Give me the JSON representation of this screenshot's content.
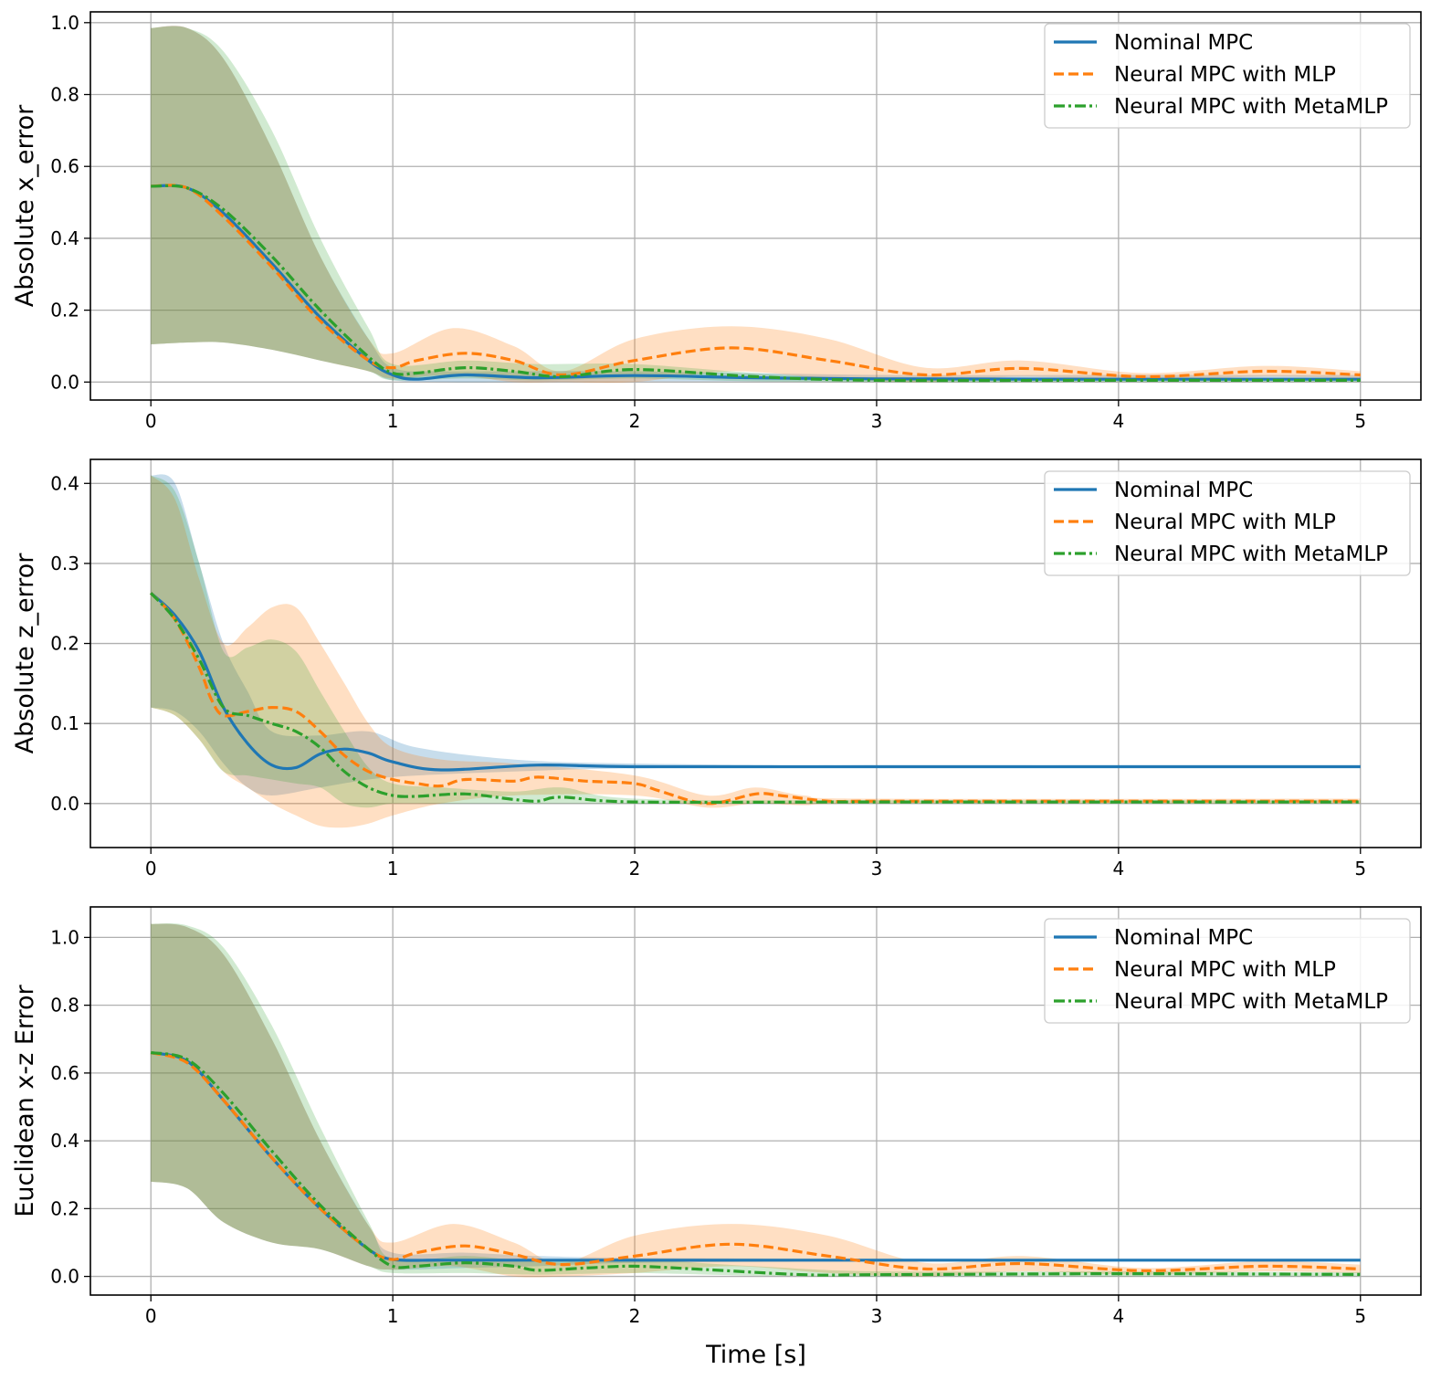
{
  "figure": {
    "xlabel": "Time [s]"
  },
  "colors": {
    "nominal": "#1f77b4",
    "mlp": "#ff7f0e",
    "metamlp": "#2ca02c",
    "grid": "#b0b0b0"
  },
  "legend": [
    "Nominal MPC",
    "Neural MPC with MLP",
    "Neural MPC with MetaMLP"
  ],
  "chart_data": [
    {
      "type": "line",
      "ylabel": "Absolute x_error",
      "xlim": [
        -0.25,
        5.25
      ],
      "ylim": [
        -0.05,
        1.03
      ],
      "xticks": [
        0,
        1,
        2,
        3,
        4,
        5
      ],
      "yticks": [
        0.0,
        0.2,
        0.4,
        0.6,
        0.8,
        1.0
      ],
      "xtick_labels": [
        "0",
        "1",
        "2",
        "3",
        "4",
        "5"
      ],
      "ytick_labels": [
        "0.0",
        "0.2",
        "0.4",
        "0.6",
        "0.8",
        "1.0"
      ],
      "grid": true,
      "legend_position": "top-right",
      "series": [
        {
          "name": "Nominal MPC",
          "style": "solid",
          "x": [
            0,
            0.15,
            0.3,
            0.5,
            0.7,
            0.9,
            1.0,
            1.1,
            1.3,
            1.6,
            2.0,
            2.5,
            3.0,
            4.0,
            5.0
          ],
          "y": [
            0.545,
            0.54,
            0.47,
            0.33,
            0.18,
            0.06,
            0.02,
            0.008,
            0.02,
            0.012,
            0.018,
            0.012,
            0.009,
            0.008,
            0.008
          ],
          "band_x": [
            0,
            0.15,
            0.3,
            0.5,
            0.7,
            0.9,
            1.0,
            1.2,
            1.5,
            2.0,
            3.0,
            4.0,
            5.0
          ],
          "band_low": [
            0.105,
            0.11,
            0.11,
            0.09,
            0.06,
            0.03,
            0.005,
            0.0,
            0.0,
            0.002,
            0.002,
            0.002,
            0.002
          ],
          "band_high": [
            0.985,
            0.985,
            0.9,
            0.65,
            0.35,
            0.12,
            0.04,
            0.03,
            0.03,
            0.03,
            0.02,
            0.02,
            0.02
          ]
        },
        {
          "name": "Neural MPC with MLP",
          "style": "dashed",
          "x": [
            0,
            0.15,
            0.3,
            0.5,
            0.7,
            0.9,
            1.0,
            1.1,
            1.3,
            1.5,
            1.7,
            2.0,
            2.4,
            2.8,
            3.2,
            3.6,
            4.1,
            4.6,
            5.0
          ],
          "y": [
            0.545,
            0.54,
            0.46,
            0.32,
            0.17,
            0.06,
            0.04,
            0.06,
            0.08,
            0.06,
            0.02,
            0.06,
            0.095,
            0.06,
            0.02,
            0.038,
            0.015,
            0.03,
            0.02
          ],
          "band_x": [
            0,
            0.15,
            0.3,
            0.5,
            0.7,
            0.9,
            1.0,
            1.25,
            1.5,
            1.7,
            2.0,
            2.4,
            2.8,
            3.2,
            3.6,
            4.1,
            4.6,
            5.0
          ],
          "band_low": [
            0.105,
            0.11,
            0.11,
            0.09,
            0.06,
            0.03,
            0.01,
            0.02,
            0.0,
            0.0,
            0.0,
            0.03,
            0.01,
            0.0,
            0.015,
            0.005,
            0.015,
            0.01
          ],
          "band_high": [
            0.985,
            0.985,
            0.9,
            0.65,
            0.35,
            0.12,
            0.08,
            0.15,
            0.1,
            0.03,
            0.12,
            0.155,
            0.12,
            0.04,
            0.06,
            0.025,
            0.045,
            0.03
          ]
        },
        {
          "name": "Neural MPC with MetaMLP",
          "style": "dashdot",
          "x": [
            0,
            0.15,
            0.3,
            0.5,
            0.7,
            0.9,
            1.0,
            1.1,
            1.3,
            1.5,
            1.7,
            2.0,
            2.5,
            3.0,
            4.0,
            5.0
          ],
          "y": [
            0.545,
            0.54,
            0.48,
            0.35,
            0.2,
            0.07,
            0.025,
            0.025,
            0.04,
            0.03,
            0.015,
            0.035,
            0.015,
            0.005,
            0.005,
            0.005
          ],
          "band_x": [
            0,
            0.15,
            0.3,
            0.5,
            0.7,
            0.9,
            1.0,
            1.3,
            1.6,
            2.0,
            2.5,
            3.0,
            4.0,
            5.0
          ],
          "band_low": [
            0.105,
            0.11,
            0.11,
            0.09,
            0.06,
            0.03,
            0.005,
            0.01,
            0.005,
            0.01,
            0.002,
            0.0,
            0.0,
            0.0
          ],
          "band_high": [
            0.985,
            0.985,
            0.92,
            0.7,
            0.4,
            0.15,
            0.05,
            0.06,
            0.05,
            0.05,
            0.025,
            0.01,
            0.01,
            0.01
          ]
        }
      ]
    },
    {
      "type": "line",
      "ylabel": "Absolute z_error",
      "xlim": [
        -0.25,
        5.25
      ],
      "ylim": [
        -0.055,
        0.43
      ],
      "xticks": [
        0,
        1,
        2,
        3,
        4,
        5
      ],
      "yticks": [
        0.0,
        0.1,
        0.2,
        0.3,
        0.4
      ],
      "xtick_labels": [
        "0",
        "1",
        "2",
        "3",
        "4",
        "5"
      ],
      "ytick_labels": [
        "0.0",
        "0.1",
        "0.2",
        "0.3",
        "0.4"
      ],
      "grid": true,
      "legend_position": "top-right",
      "series": [
        {
          "name": "Nominal MPC",
          "style": "solid",
          "x": [
            0,
            0.1,
            0.2,
            0.3,
            0.4,
            0.5,
            0.6,
            0.7,
            0.8,
            0.9,
            1.0,
            1.2,
            1.6,
            2.0,
            3.0,
            4.0,
            5.0
          ],
          "y": [
            0.263,
            0.235,
            0.19,
            0.12,
            0.075,
            0.048,
            0.045,
            0.062,
            0.068,
            0.063,
            0.052,
            0.042,
            0.048,
            0.046,
            0.046,
            0.046,
            0.046
          ],
          "band_x": [
            0,
            0.1,
            0.2,
            0.3,
            0.4,
            0.5,
            0.7,
            0.9,
            1.1,
            1.5,
            2.0,
            3.0,
            5.0
          ],
          "band_low": [
            0.12,
            0.115,
            0.09,
            0.05,
            0.02,
            0.01,
            0.02,
            0.03,
            0.035,
            0.04,
            0.044,
            0.045,
            0.045
          ],
          "band_high": [
            0.41,
            0.4,
            0.3,
            0.2,
            0.14,
            0.09,
            0.085,
            0.09,
            0.07,
            0.055,
            0.05,
            0.048,
            0.048
          ]
        },
        {
          "name": "Neural MPC with MLP",
          "style": "dashed",
          "x": [
            0,
            0.1,
            0.2,
            0.25,
            0.3,
            0.4,
            0.5,
            0.6,
            0.7,
            0.8,
            0.9,
            1.0,
            1.1,
            1.2,
            1.3,
            1.5,
            1.6,
            1.8,
            2.0,
            2.1,
            2.3,
            2.5,
            2.6,
            2.8,
            3.0,
            4.0,
            5.0
          ],
          "y": [
            0.263,
            0.23,
            0.17,
            0.13,
            0.11,
            0.115,
            0.12,
            0.115,
            0.09,
            0.06,
            0.04,
            0.03,
            0.025,
            0.022,
            0.03,
            0.028,
            0.033,
            0.028,
            0.025,
            0.016,
            0.0,
            0.012,
            0.01,
            0.003,
            0.003,
            0.003,
            0.003
          ],
          "band_x": [
            0,
            0.1,
            0.2,
            0.3,
            0.4,
            0.5,
            0.6,
            0.7,
            0.8,
            0.9,
            1.0,
            1.2,
            1.5,
            2.0,
            2.3,
            2.5,
            2.7,
            3.0,
            5.0
          ],
          "band_low": [
            0.12,
            0.11,
            0.08,
            0.04,
            0.02,
            0.0,
            -0.015,
            -0.028,
            -0.03,
            -0.025,
            -0.015,
            0.0,
            0.01,
            0.01,
            -0.005,
            0.0,
            -0.002,
            0.0,
            0.0
          ],
          "band_high": [
            0.41,
            0.38,
            0.28,
            0.2,
            0.22,
            0.245,
            0.245,
            0.2,
            0.15,
            0.1,
            0.07,
            0.055,
            0.05,
            0.035,
            0.01,
            0.02,
            0.01,
            0.006,
            0.006
          ]
        },
        {
          "name": "Neural MPC with MetaMLP",
          "style": "dashdot",
          "x": [
            0,
            0.1,
            0.2,
            0.3,
            0.4,
            0.5,
            0.6,
            0.7,
            0.8,
            0.9,
            1.0,
            1.1,
            1.3,
            1.5,
            1.6,
            1.7,
            2.0,
            3.0,
            4.0,
            5.0
          ],
          "y": [
            0.263,
            0.23,
            0.18,
            0.12,
            0.11,
            0.1,
            0.09,
            0.07,
            0.04,
            0.02,
            0.01,
            0.009,
            0.012,
            0.005,
            0.003,
            0.008,
            0.002,
            0.002,
            0.002,
            0.002
          ],
          "band_x": [
            0,
            0.1,
            0.2,
            0.3,
            0.4,
            0.5,
            0.6,
            0.7,
            0.8,
            0.9,
            1.0,
            1.2,
            1.5,
            1.7,
            2.0,
            3.0,
            5.0
          ],
          "band_low": [
            0.12,
            0.11,
            0.08,
            0.04,
            0.035,
            0.03,
            0.025,
            0.02,
            0.0,
            -0.005,
            0.0,
            0.0,
            0.0,
            0.0,
            0.0,
            0.0,
            0.0
          ],
          "band_high": [
            0.41,
            0.39,
            0.3,
            0.19,
            0.195,
            0.205,
            0.19,
            0.14,
            0.09,
            0.045,
            0.025,
            0.02,
            0.015,
            0.02,
            0.006,
            0.004,
            0.004
          ]
        }
      ]
    },
    {
      "type": "line",
      "ylabel": "Euclidean x-z Error",
      "xlim": [
        -0.25,
        5.25
      ],
      "ylim": [
        -0.055,
        1.09
      ],
      "xticks": [
        0,
        1,
        2,
        3,
        4,
        5
      ],
      "yticks": [
        0.0,
        0.2,
        0.4,
        0.6,
        0.8,
        1.0
      ],
      "xtick_labels": [
        "0",
        "1",
        "2",
        "3",
        "4",
        "5"
      ],
      "ytick_labels": [
        "0.0",
        "0.2",
        "0.4",
        "0.6",
        "0.8",
        "1.0"
      ],
      "grid": true,
      "legend_position": "top-right",
      "series": [
        {
          "name": "Nominal MPC",
          "style": "solid",
          "x": [
            0,
            0.15,
            0.3,
            0.5,
            0.7,
            0.9,
            1.0,
            1.2,
            1.5,
            2.0,
            3.0,
            4.0,
            5.0
          ],
          "y": [
            0.66,
            0.635,
            0.52,
            0.35,
            0.2,
            0.08,
            0.05,
            0.048,
            0.048,
            0.048,
            0.048,
            0.048,
            0.048
          ],
          "band_x": [
            0,
            0.15,
            0.3,
            0.5,
            0.7,
            0.9,
            1.0,
            1.3,
            1.6,
            2.0,
            3.0,
            5.0
          ],
          "band_low": [
            0.28,
            0.26,
            0.16,
            0.1,
            0.08,
            0.03,
            0.02,
            0.025,
            0.03,
            0.04,
            0.044,
            0.044
          ],
          "band_high": [
            1.04,
            1.03,
            0.95,
            0.7,
            0.4,
            0.15,
            0.07,
            0.07,
            0.06,
            0.055,
            0.052,
            0.052
          ]
        },
        {
          "name": "Neural MPC with MLP",
          "style": "dashed",
          "x": [
            0,
            0.15,
            0.3,
            0.5,
            0.7,
            0.9,
            1.0,
            1.1,
            1.3,
            1.5,
            1.7,
            2.0,
            2.4,
            2.8,
            3.2,
            3.6,
            4.1,
            4.6,
            5.0
          ],
          "y": [
            0.66,
            0.63,
            0.52,
            0.35,
            0.2,
            0.08,
            0.05,
            0.07,
            0.09,
            0.065,
            0.035,
            0.06,
            0.095,
            0.06,
            0.022,
            0.038,
            0.017,
            0.03,
            0.022
          ],
          "band_x": [
            0,
            0.15,
            0.3,
            0.5,
            0.7,
            0.9,
            1.0,
            1.25,
            1.5,
            1.7,
            2.0,
            2.4,
            2.8,
            3.2,
            3.6,
            4.1,
            4.6,
            5.0
          ],
          "band_low": [
            0.28,
            0.26,
            0.16,
            0.1,
            0.08,
            0.03,
            0.02,
            0.03,
            0.0,
            0.0,
            0.01,
            0.03,
            0.01,
            0.0,
            0.015,
            0.005,
            0.015,
            0.01
          ],
          "band_high": [
            1.04,
            1.03,
            0.95,
            0.7,
            0.4,
            0.15,
            0.1,
            0.155,
            0.1,
            0.04,
            0.12,
            0.155,
            0.12,
            0.04,
            0.06,
            0.025,
            0.045,
            0.035
          ]
        },
        {
          "name": "Neural MPC with MetaMLP",
          "style": "dashdot",
          "x": [
            0,
            0.15,
            0.3,
            0.5,
            0.7,
            0.9,
            1.0,
            1.1,
            1.3,
            1.5,
            1.6,
            1.8,
            2.0,
            2.3,
            2.7,
            3.0,
            4.0,
            5.0
          ],
          "y": [
            0.66,
            0.64,
            0.54,
            0.37,
            0.21,
            0.08,
            0.03,
            0.03,
            0.04,
            0.03,
            0.018,
            0.025,
            0.03,
            0.02,
            0.005,
            0.005,
            0.008,
            0.006
          ],
          "band_x": [
            0,
            0.15,
            0.3,
            0.5,
            0.7,
            0.9,
            1.0,
            1.3,
            1.6,
            2.0,
            2.5,
            3.0,
            4.0,
            5.0
          ],
          "band_low": [
            0.28,
            0.26,
            0.16,
            0.1,
            0.08,
            0.03,
            0.01,
            0.01,
            0.005,
            0.01,
            0.002,
            0.0,
            0.0,
            0.0
          ],
          "band_high": [
            1.04,
            1.035,
            0.97,
            0.74,
            0.44,
            0.16,
            0.05,
            0.06,
            0.045,
            0.05,
            0.03,
            0.015,
            0.015,
            0.012
          ]
        }
      ]
    }
  ]
}
